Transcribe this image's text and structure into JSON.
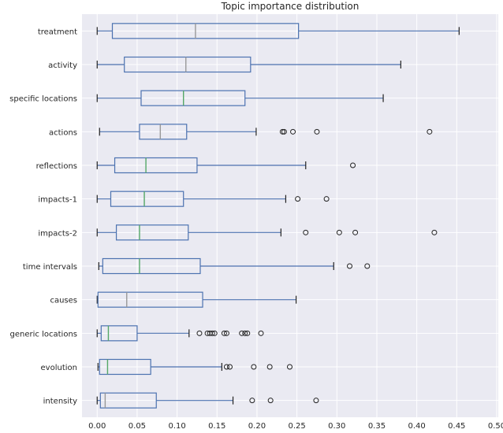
{
  "chart_data": {
    "type": "boxplot",
    "orientation": "horizontal",
    "title": "Topic importance distribution",
    "xlabel": "",
    "ylabel": "",
    "xlim": [
      -0.019,
      0.502
    ],
    "xticks": [
      "0.00",
      "0.05",
      "0.10",
      "0.15",
      "0.20",
      "0.25",
      "0.30",
      "0.35",
      "0.40",
      "0.45",
      "0.50"
    ],
    "grid": true,
    "colors": {
      "background": "#eaeaf2",
      "grid": "#ffffff",
      "box": "#4c72b0",
      "median_green": "#55a868",
      "median_gray": "#999999",
      "flier": "#222222",
      "whisker_cap": "#222222"
    },
    "series": [
      {
        "name": "treatment",
        "whislo": 0.0,
        "q1": 0.019,
        "med": 0.123,
        "q3": 0.252,
        "whishi": 0.453,
        "fliers": [],
        "median_color": "gray"
      },
      {
        "name": "activity",
        "whislo": 0.0,
        "q1": 0.034,
        "med": 0.111,
        "q3": 0.192,
        "whishi": 0.38,
        "fliers": [],
        "median_color": "gray"
      },
      {
        "name": "specific locations",
        "whislo": 0.0,
        "q1": 0.055,
        "med": 0.108,
        "q3": 0.185,
        "whishi": 0.358,
        "fliers": [],
        "median_color": "green"
      },
      {
        "name": "actions",
        "whislo": 0.003,
        "q1": 0.053,
        "med": 0.079,
        "q3": 0.112,
        "whishi": 0.199,
        "fliers": [
          0.232,
          0.234,
          0.245,
          0.275,
          0.416
        ],
        "median_color": "gray"
      },
      {
        "name": "reflections",
        "whislo": 0.0,
        "q1": 0.022,
        "med": 0.061,
        "q3": 0.125,
        "whishi": 0.261,
        "fliers": [
          0.32
        ],
        "median_color": "green"
      },
      {
        "name": "impacts-1",
        "whislo": 0.0,
        "q1": 0.017,
        "med": 0.059,
        "q3": 0.108,
        "whishi": 0.236,
        "fliers": [
          0.251,
          0.287
        ],
        "median_color": "green"
      },
      {
        "name": "impacts-2",
        "whislo": 0.0,
        "q1": 0.024,
        "med": 0.053,
        "q3": 0.114,
        "whishi": 0.23,
        "fliers": [
          0.261,
          0.303,
          0.323,
          0.422
        ],
        "median_color": "green"
      },
      {
        "name": "time intervals",
        "whislo": 0.002,
        "q1": 0.007,
        "med": 0.053,
        "q3": 0.129,
        "whishi": 0.296,
        "fliers": [
          0.316,
          0.338
        ],
        "median_color": "green"
      },
      {
        "name": "causes",
        "whislo": 0.0,
        "q1": 0.001,
        "med": 0.037,
        "q3": 0.132,
        "whishi": 0.249,
        "fliers": [],
        "median_color": "gray"
      },
      {
        "name": "generic locations",
        "whislo": 0.0,
        "q1": 0.005,
        "med": 0.014,
        "q3": 0.05,
        "whishi": 0.115,
        "fliers": [
          0.128,
          0.138,
          0.141,
          0.144,
          0.147,
          0.159,
          0.162,
          0.181,
          0.185,
          0.188,
          0.205
        ],
        "median_color": "green"
      },
      {
        "name": "evolution",
        "whislo": 0.001,
        "q1": 0.003,
        "med": 0.013,
        "q3": 0.067,
        "whishi": 0.156,
        "fliers": [
          0.162,
          0.166,
          0.196,
          0.216,
          0.241
        ],
        "median_color": "green"
      },
      {
        "name": "intensity",
        "whislo": 0.0,
        "q1": 0.004,
        "med": 0.01,
        "q3": 0.074,
        "whishi": 0.17,
        "fliers": [
          0.194,
          0.217,
          0.274
        ],
        "median_color": "gray"
      }
    ]
  }
}
